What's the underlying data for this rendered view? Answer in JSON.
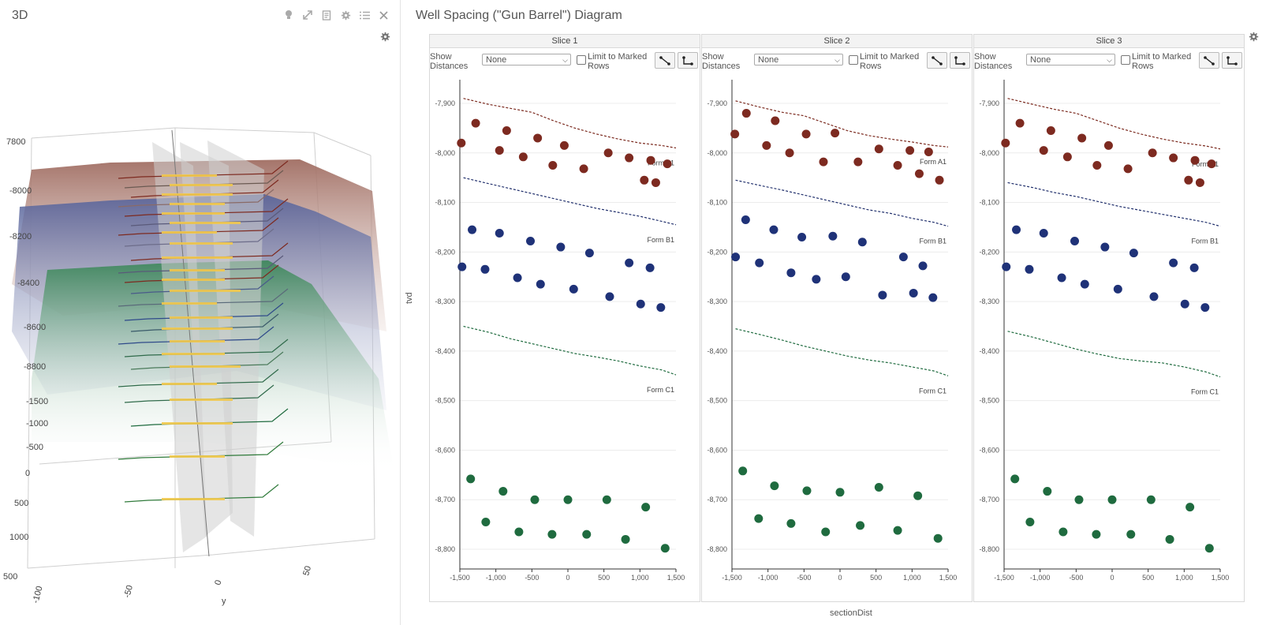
{
  "left": {
    "title": "3D",
    "toolbar_icons": [
      "lightbulb-icon",
      "expand-icon",
      "document-icon",
      "gear-icon",
      "list-icon",
      "close-icon"
    ],
    "scene": {
      "depth_labels": [
        "7800",
        "-8000",
        "-8200",
        "-8400",
        "-8600",
        "-8800"
      ],
      "y_labels": [
        "-1500",
        "-1000",
        "-500",
        "0",
        "500",
        "1000",
        "500"
      ],
      "x_labels": [
        "-100",
        "-50",
        "0",
        "50"
      ],
      "axis_title": "y",
      "surface_colors": {
        "top": "#a9776b",
        "middle": "#5c6a9c",
        "bottom": "#3f8a5a"
      },
      "lateral_color": "#f2c94c"
    }
  },
  "right": {
    "title": "Well Spacing (\"Gun Barrel\") Diagram",
    "ylabel": "tvd",
    "xlabel": "sectionDist",
    "slices": [
      {
        "name": "Slice 1",
        "show_label": "Show Distances",
        "select_value": "None",
        "limit_label": "Limit to Marked Rows"
      },
      {
        "name": "Slice 2",
        "show_label": "Show Distances",
        "select_value": "None",
        "limit_label": "Limit to Marked Rows"
      },
      {
        "name": "Slice 3",
        "show_label": "Show Distances",
        "select_value": "None",
        "limit_label": "Limit to Marked Rows"
      }
    ]
  },
  "chart_data": [
    {
      "type": "scatter",
      "title": "Slice 1",
      "xlabel": "sectionDist",
      "ylabel": "tvd",
      "xlim": [
        -1500,
        1500
      ],
      "ylim": [
        -8800,
        -7900
      ],
      "xticks": [
        "-1,500",
        "-1,000",
        "-500",
        "0",
        "500",
        "1,000",
        "1,500"
      ],
      "yticks": [
        "-7,900",
        "-8,000",
        "-8,100",
        "-8,200",
        "-8,300",
        "-8,400",
        "-8,500",
        "-8,600",
        "-8,700",
        "-8,800"
      ],
      "formation_lines": [
        {
          "name": "Form A1",
          "color": "#7b2a1f",
          "x": [
            -1450,
            -1100,
            -800,
            -500,
            -200,
            100,
            400,
            700,
            1000,
            1300,
            1500
          ],
          "y": [
            -7890,
            -7902,
            -7910,
            -7918,
            -7935,
            -7950,
            -7962,
            -7972,
            -7980,
            -7985,
            -7990
          ]
        },
        {
          "name": "Form B1",
          "color": "#1f2e6b",
          "x": [
            -1450,
            -1100,
            -800,
            -500,
            -200,
            100,
            400,
            700,
            1000,
            1300,
            1500
          ],
          "y": [
            -8050,
            -8062,
            -8072,
            -8082,
            -8092,
            -8102,
            -8112,
            -8120,
            -8128,
            -8138,
            -8145
          ]
        },
        {
          "name": "Form C1",
          "color": "#1f6b3f",
          "x": [
            -1450,
            -1100,
            -800,
            -500,
            -200,
            100,
            400,
            700,
            1000,
            1300,
            1500
          ],
          "y": [
            -8350,
            -8362,
            -8375,
            -8385,
            -8395,
            -8405,
            -8412,
            -8420,
            -8430,
            -8438,
            -8448
          ]
        }
      ],
      "series": [
        {
          "name": "Form A1",
          "color": "#7d2a20",
          "x": [
            -1480,
            -1280,
            -950,
            -850,
            -620,
            -420,
            -210,
            -50,
            220,
            560,
            850,
            1060,
            1150,
            1220,
            1380
          ],
          "y": [
            -7980,
            -7940,
            -7995,
            -7955,
            -8008,
            -7970,
            -8025,
            -7985,
            -8032,
            -8000,
            -8010,
            -8055,
            -8015,
            -8060,
            -8022
          ]
        },
        {
          "name": "Form B1",
          "color": "#1f3278",
          "x": [
            -1470,
            -1330,
            -1150,
            -950,
            -700,
            -520,
            -380,
            -100,
            80,
            300,
            580,
            850,
            1010,
            1140,
            1290
          ],
          "y": [
            -8230,
            -8155,
            -8235,
            -8162,
            -8252,
            -8178,
            -8265,
            -8190,
            -8275,
            -8202,
            -8290,
            -8222,
            -8305,
            -8232,
            -8312
          ]
        },
        {
          "name": "Form C1",
          "color": "#1f6b3f",
          "x": [
            -1350,
            -1140,
            -900,
            -680,
            -460,
            -220,
            0,
            260,
            540,
            800,
            1080,
            1350
          ],
          "y": [
            -8658,
            -8745,
            -8683,
            -8765,
            -8700,
            -8770,
            -8700,
            -8770,
            -8700,
            -8780,
            -8715,
            -8798
          ]
        }
      ]
    },
    {
      "type": "scatter",
      "title": "Slice 2",
      "xlabel": "sectionDist",
      "ylabel": "tvd",
      "xlim": [
        -1500,
        1500
      ],
      "ylim": [
        -8800,
        -7900
      ],
      "xticks": [
        "-1,500",
        "-1,000",
        "-500",
        "0",
        "500",
        "1,000",
        "1,500"
      ],
      "yticks": [
        "-7,900",
        "-8,000",
        "-8,100",
        "-8,200",
        "-8,300",
        "-8,400",
        "-8,500",
        "-8,600",
        "-8,700",
        "-8,800"
      ],
      "formation_lines": [
        {
          "name": "Form A1",
          "color": "#7b2a1f",
          "x": [
            -1450,
            -1100,
            -800,
            -500,
            -200,
            100,
            400,
            700,
            1000,
            1300,
            1500
          ],
          "y": [
            -7895,
            -7908,
            -7918,
            -7925,
            -7940,
            -7955,
            -7965,
            -7972,
            -7978,
            -7985,
            -7988
          ]
        },
        {
          "name": "Form B1",
          "color": "#1f2e6b",
          "x": [
            -1450,
            -1100,
            -800,
            -500,
            -200,
            100,
            400,
            700,
            1000,
            1300,
            1500
          ],
          "y": [
            -8055,
            -8066,
            -8075,
            -8085,
            -8095,
            -8105,
            -8115,
            -8122,
            -8132,
            -8140,
            -8148
          ]
        },
        {
          "name": "Form C1",
          "color": "#1f6b3f",
          "x": [
            -1450,
            -1100,
            -800,
            -500,
            -200,
            100,
            400,
            700,
            1000,
            1300,
            1500
          ],
          "y": [
            -8355,
            -8367,
            -8378,
            -8390,
            -8400,
            -8410,
            -8418,
            -8424,
            -8432,
            -8440,
            -8450
          ]
        }
      ],
      "series": [
        {
          "name": "Form A1",
          "color": "#7d2a20",
          "x": [
            -1460,
            -1300,
            -1020,
            -900,
            -700,
            -470,
            -230,
            -70,
            250,
            540,
            800,
            970,
            1100,
            1230,
            1380
          ],
          "y": [
            -7962,
            -7920,
            -7985,
            -7935,
            -8000,
            -7962,
            -8018,
            -7960,
            -8018,
            -7992,
            -8025,
            -7995,
            -8042,
            -7998,
            -8055
          ]
        },
        {
          "name": "Form B1",
          "color": "#1f3278",
          "x": [
            -1450,
            -1310,
            -1120,
            -920,
            -680,
            -530,
            -330,
            -100,
            80,
            310,
            590,
            880,
            1020,
            1150,
            1290
          ],
          "y": [
            -8210,
            -8135,
            -8222,
            -8155,
            -8242,
            -8170,
            -8255,
            -8168,
            -8250,
            -8180,
            -8287,
            -8210,
            -8283,
            -8228,
            -8292
          ]
        },
        {
          "name": "Form C1",
          "color": "#1f6b3f",
          "x": [
            -1350,
            -1130,
            -910,
            -680,
            -460,
            -200,
            0,
            280,
            540,
            800,
            1080,
            1360
          ],
          "y": [
            -8642,
            -8738,
            -8672,
            -8748,
            -8682,
            -8765,
            -8685,
            -8752,
            -8675,
            -8762,
            -8692,
            -8778
          ]
        }
      ]
    },
    {
      "type": "scatter",
      "title": "Slice 3",
      "xlabel": "sectionDist",
      "ylabel": "tvd",
      "xlim": [
        -1500,
        1500
      ],
      "ylim": [
        -8800,
        -7900
      ],
      "xticks": [
        "-1,500",
        "-1,000",
        "-500",
        "0",
        "500",
        "1,000",
        "1,500"
      ],
      "yticks": [
        "-7,900",
        "-8,000",
        "-8,100",
        "-8,200",
        "-8,300",
        "-8,400",
        "-8,500",
        "-8,600",
        "-8,700",
        "-8,800"
      ],
      "formation_lines": [
        {
          "name": "Form A1",
          "color": "#7b2a1f",
          "x": [
            -1450,
            -1100,
            -800,
            -500,
            -200,
            100,
            400,
            700,
            1000,
            1300,
            1500
          ],
          "y": [
            -7890,
            -7902,
            -7912,
            -7920,
            -7935,
            -7950,
            -7962,
            -7972,
            -7980,
            -7986,
            -7992
          ]
        },
        {
          "name": "Form B1",
          "color": "#1f2e6b",
          "x": [
            -1450,
            -1100,
            -800,
            -500,
            -200,
            100,
            400,
            700,
            1000,
            1300,
            1500
          ],
          "y": [
            -8060,
            -8070,
            -8080,
            -8088,
            -8098,
            -8108,
            -8116,
            -8124,
            -8132,
            -8140,
            -8148
          ]
        },
        {
          "name": "Form C1",
          "color": "#1f6b3f",
          "x": [
            -1450,
            -1100,
            -800,
            -500,
            -200,
            100,
            400,
            700,
            1000,
            1300,
            1500
          ],
          "y": [
            -8360,
            -8372,
            -8384,
            -8396,
            -8406,
            -8415,
            -8420,
            -8424,
            -8432,
            -8442,
            -8452
          ]
        }
      ],
      "series": [
        {
          "name": "Form A1",
          "color": "#7d2a20",
          "x": [
            -1480,
            -1280,
            -950,
            -850,
            -620,
            -420,
            -210,
            -50,
            220,
            560,
            850,
            1060,
            1150,
            1220,
            1380
          ],
          "y": [
            -7980,
            -7940,
            -7995,
            -7955,
            -8008,
            -7970,
            -8025,
            -7985,
            -8032,
            -8000,
            -8010,
            -8055,
            -8015,
            -8060,
            -8022
          ]
        },
        {
          "name": "Form B1",
          "color": "#1f3278",
          "x": [
            -1470,
            -1330,
            -1150,
            -950,
            -700,
            -520,
            -380,
            -100,
            80,
            300,
            580,
            850,
            1010,
            1140,
            1290
          ],
          "y": [
            -8230,
            -8155,
            -8235,
            -8162,
            -8252,
            -8178,
            -8265,
            -8190,
            -8275,
            -8202,
            -8290,
            -8222,
            -8305,
            -8232,
            -8312
          ]
        },
        {
          "name": "Form C1",
          "color": "#1f6b3f",
          "x": [
            -1350,
            -1140,
            -900,
            -680,
            -460,
            -220,
            0,
            260,
            540,
            800,
            1080,
            1350
          ],
          "y": [
            -8658,
            -8745,
            -8683,
            -8765,
            -8700,
            -8770,
            -8700,
            -8770,
            -8700,
            -8780,
            -8715,
            -8798
          ]
        }
      ]
    }
  ]
}
